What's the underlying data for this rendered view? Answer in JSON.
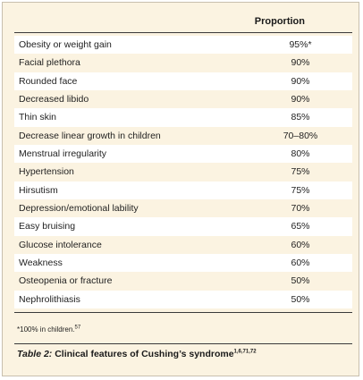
{
  "table": {
    "header": {
      "proportion": "Proportion"
    },
    "rows": [
      {
        "feature": "Obesity or weight gain",
        "proportion": "95%*"
      },
      {
        "feature": "Facial plethora",
        "proportion": "90%"
      },
      {
        "feature": "Rounded face",
        "proportion": "90%"
      },
      {
        "feature": "Decreased libido",
        "proportion": "90%"
      },
      {
        "feature": "Thin skin",
        "proportion": "85%"
      },
      {
        "feature": "Decrease linear growth in children",
        "proportion": "70–80%"
      },
      {
        "feature": "Menstrual irregularity",
        "proportion": "80%"
      },
      {
        "feature": "Hypertension",
        "proportion": "75%"
      },
      {
        "feature": "Hirsutism",
        "proportion": "75%"
      },
      {
        "feature": "Depression/emotional lability",
        "proportion": "70%"
      },
      {
        "feature": "Easy bruising",
        "proportion": "65%"
      },
      {
        "feature": "Glucose intolerance",
        "proportion": "60%"
      },
      {
        "feature": "Weakness",
        "proportion": "60%"
      },
      {
        "feature": "Osteopenia or fracture",
        "proportion": "50%"
      },
      {
        "feature": "Nephrolithiasis",
        "proportion": "50%"
      }
    ]
  },
  "footnote": {
    "text": "*100% in children.",
    "ref": "57"
  },
  "caption": {
    "label": "Table 2:",
    "text": " Clinical features of Cushing’s syndrome",
    "refs": "1,6,71,72"
  },
  "colors": {
    "panel_background": "#fbf3e1",
    "row_highlight": "#ffffff",
    "rule": "#3a3a3a"
  }
}
